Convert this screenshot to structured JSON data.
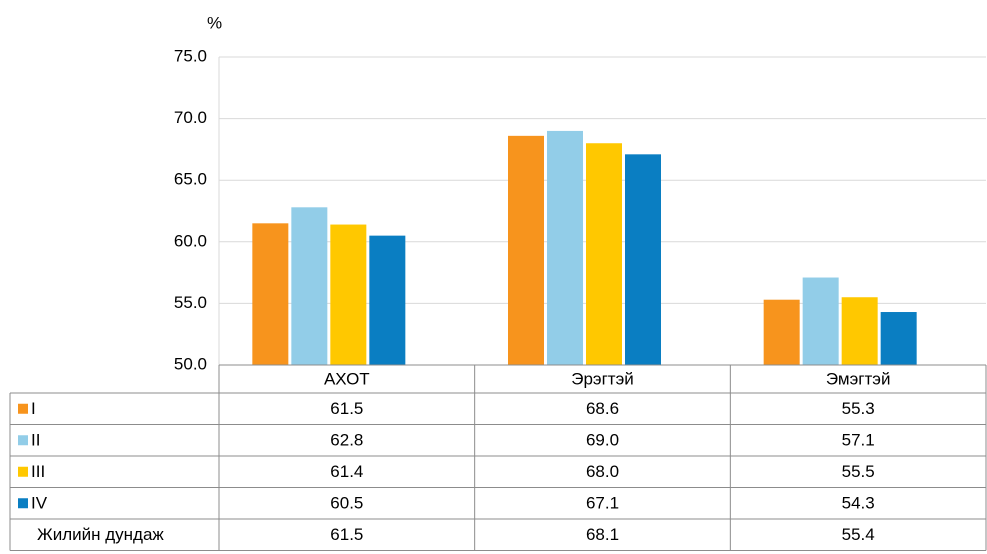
{
  "chart_data": {
    "type": "bar",
    "y_label": "%",
    "categories": [
      "АХОТ",
      "Эрэгтэй",
      "Эмэгтэй"
    ],
    "series": [
      {
        "name": "I",
        "color": "#f7941d",
        "values": [
          61.5,
          68.6,
          55.3
        ],
        "value_labels": [
          "61.5",
          "68.6",
          "55.3"
        ]
      },
      {
        "name": "II",
        "color": "#92cde8",
        "values": [
          62.8,
          69.0,
          57.1
        ],
        "value_labels": [
          "62.8",
          "69.0",
          "57.1"
        ]
      },
      {
        "name": "III",
        "color": "#ffc800",
        "values": [
          61.4,
          68.0,
          55.5
        ],
        "value_labels": [
          "61.4",
          "68.0",
          "55.5"
        ]
      },
      {
        "name": "IV",
        "color": "#0a7ec2",
        "values": [
          60.5,
          67.1,
          54.3
        ],
        "value_labels": [
          "60.5",
          "67.1",
          "54.3"
        ]
      }
    ],
    "average": {
      "name": "Жилийн дундаж",
      "values": [
        61.5,
        68.1,
        55.4
      ]
    },
    "ylim": [
      50,
      75
    ],
    "yticks": [
      {
        "value": 50,
        "label": "50.0"
      },
      {
        "value": 55,
        "label": "55.0"
      },
      {
        "value": 60,
        "label": "60.0"
      },
      {
        "value": 65,
        "label": "65.0"
      },
      {
        "value": 70,
        "label": "70.0"
      },
      {
        "value": 75,
        "label": "75.0"
      }
    ],
    "grid": true
  }
}
